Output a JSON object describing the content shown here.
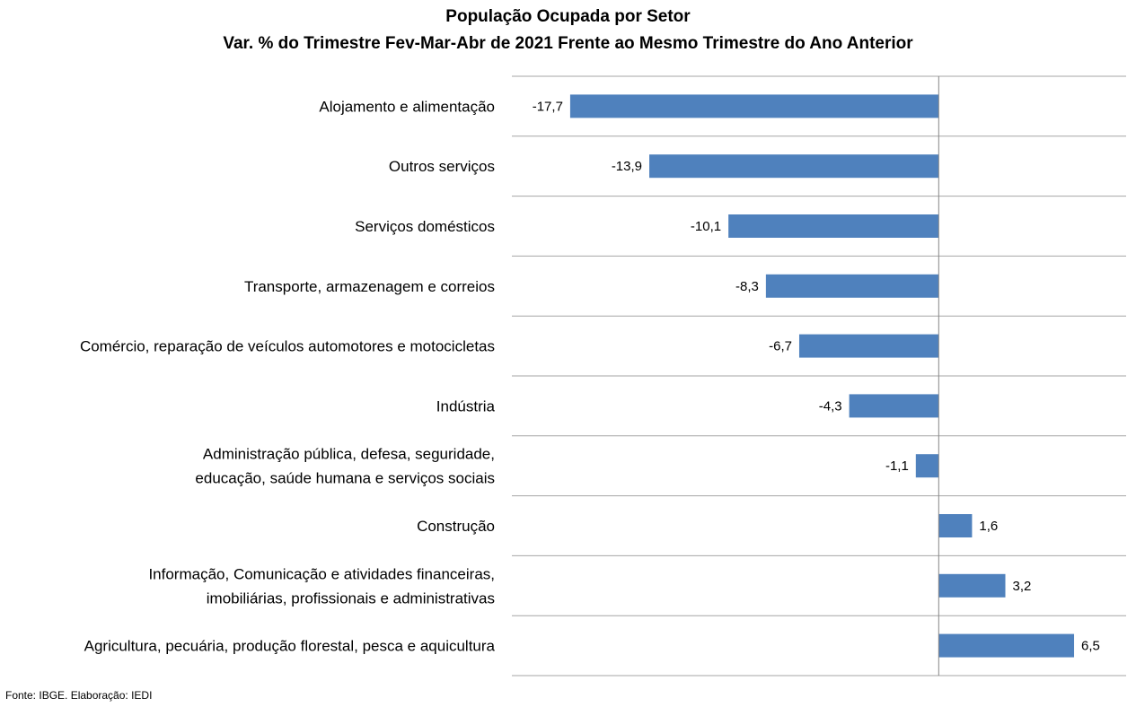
{
  "chart_data": {
    "type": "bar",
    "orientation": "horizontal",
    "title": "População Ocupada por Setor",
    "subtitle": "Var. % do Trimestre Fev-Mar-Abr de 2021 Frente ao Mesmo Trimestre do Ano Anterior",
    "categories": [
      [
        "Alojamento e alimentação"
      ],
      [
        "Outros serviços"
      ],
      [
        "Serviços domésticos"
      ],
      [
        "Transporte, armazenagem e correios"
      ],
      [
        "Comércio, reparação de veículos automotores e motocicletas"
      ],
      [
        "Indústria"
      ],
      [
        "Administração pública, defesa, seguridade,",
        "educação, saúde humana e serviços sociais"
      ],
      [
        "Construção"
      ],
      [
        "Informação, Comunicação e atividades financeiras,",
        "imobiliárias, profissionais e administrativas"
      ],
      [
        "Agricultura, pecuária, produção florestal, pesca e aquicultura"
      ]
    ],
    "values": [
      -17.7,
      -13.9,
      -10.1,
      -8.3,
      -6.7,
      -4.3,
      -1.1,
      1.6,
      3.2,
      6.5
    ],
    "value_labels": [
      "-17,7",
      "-13,9",
      "-10,1",
      "-8,3",
      "-6,7",
      "-4,3",
      "-1,1",
      "1,6",
      "3,2",
      "6,5"
    ],
    "xlim": [
      -20.5,
      9
    ],
    "grid": "horizontal category separators",
    "bar_color": "#4F81BD",
    "grid_color": "#A6A6A6"
  },
  "footer": {
    "source": "Fonte: IBGE. Elaboração: IEDI"
  }
}
